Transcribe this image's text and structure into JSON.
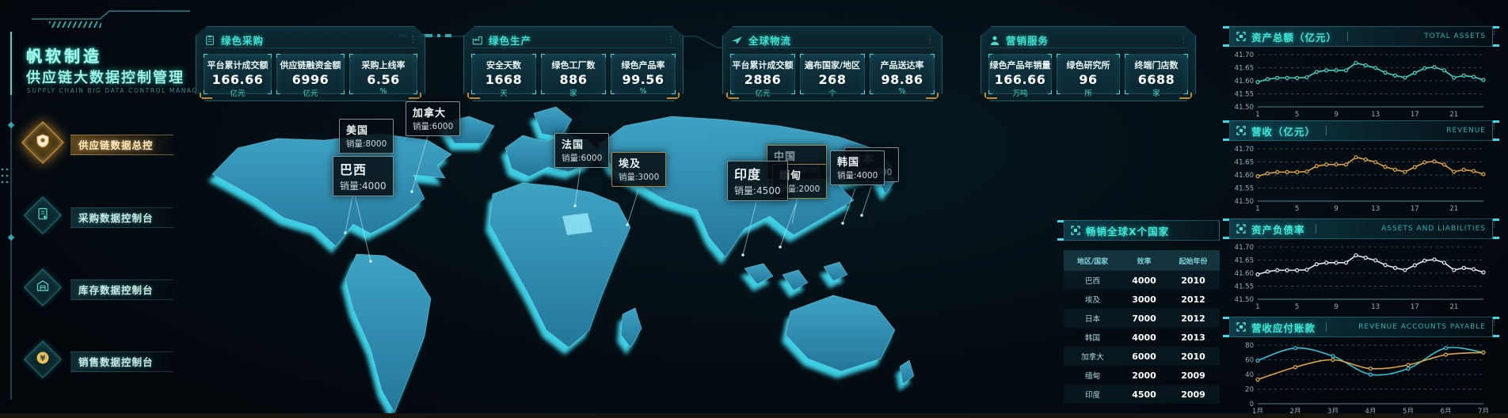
{
  "sidebar": {
    "title_line1": "帆软制造",
    "title_line2": "供应链大数据控制管理",
    "subtitle_en": "SUPPLY CHAIN BIG DATA CONTROL MANAGEMENT",
    "items": [
      {
        "label": "供应链数据总控",
        "icon": "shield-icon",
        "active": true
      },
      {
        "label": "采购数据控制台",
        "icon": "document-icon",
        "active": false
      },
      {
        "label": "库存数据控制台",
        "icon": "warehouse-icon",
        "active": false
      },
      {
        "label": "销售数据控制台",
        "icon": "yuan-icon",
        "active": false
      }
    ]
  },
  "stat_panels": [
    {
      "title": "绿色采购",
      "icon": "clipboard-icon",
      "menu": "⋮",
      "stats": [
        {
          "label": "平台累计成交额",
          "value": "166.66",
          "unit": "亿元"
        },
        {
          "label": "供应链融资金额",
          "value": "6996",
          "unit": "亿元"
        },
        {
          "label": "采购上线率",
          "value": "6.56",
          "unit": "%"
        }
      ]
    },
    {
      "title": "绿色生产",
      "icon": "factory-icon",
      "menu": "⋮",
      "stats": [
        {
          "label": "安全天数",
          "value": "1668",
          "unit": "天"
        },
        {
          "label": "绿色工厂数",
          "value": "886",
          "unit": "家"
        },
        {
          "label": "绿色产品率",
          "value": "99.56",
          "unit": "%"
        }
      ]
    },
    {
      "title": "全球物流",
      "icon": "plane-icon",
      "menu": "⋮",
      "stats": [
        {
          "label": "平台累计成交额",
          "value": "2886",
          "unit": "亿元"
        },
        {
          "label": "遍布国家/地区",
          "value": "268",
          "unit": "个"
        },
        {
          "label": "产品送达率",
          "value": "98.86",
          "unit": "%"
        }
      ]
    },
    {
      "title": "营销服务",
      "icon": "person-icon",
      "menu": "⋮",
      "stats": [
        {
          "label": "绿色产品年销量",
          "value": "166.66",
          "unit": "万吨"
        },
        {
          "label": "绿色研究所",
          "value": "96",
          "unit": "所"
        },
        {
          "label": "终端门店数",
          "value": "6688",
          "unit": "家"
        }
      ]
    }
  ],
  "map_labels": [
    {
      "country": "美国",
      "sales": "销量:8000"
    },
    {
      "country": "加拿大",
      "sales": "销量:6000"
    },
    {
      "country": "法国",
      "sales": "销量:6000"
    },
    {
      "country": "埃及",
      "sales": "销量:3000"
    },
    {
      "country": "巴西",
      "sales": "销量:4000"
    },
    {
      "country": "中国",
      "sales": "销量:10000"
    },
    {
      "country": "缅甸",
      "sales": "销量:2000"
    },
    {
      "country": "印度",
      "sales": "销量:4500"
    },
    {
      "country": "韩国",
      "sales": "销量:4000"
    },
    {
      "country": "日本",
      "sales": "销量:7000"
    }
  ],
  "table_panel": {
    "title": "畅销全球X个国家",
    "columns": [
      "地区/国家",
      "效率",
      "起始年份"
    ],
    "rows": [
      [
        "巴西",
        "4000",
        "2010"
      ],
      [
        "埃及",
        "3000",
        "2012"
      ],
      [
        "日本",
        "7000",
        "2012"
      ],
      [
        "韩国",
        "4000",
        "2013"
      ],
      [
        "加拿大",
        "6000",
        "2010"
      ],
      [
        "缅甸",
        "2000",
        "2009"
      ],
      [
        "印度",
        "4500",
        "2009"
      ]
    ]
  },
  "chart_data": [
    {
      "type": "line",
      "title": "资产总额（亿元）",
      "title_en": "TOTAL ASSETS",
      "ylim": [
        41.5,
        41.7
      ],
      "yticks": [
        41.5,
        41.55,
        41.6,
        41.65,
        41.7
      ],
      "ytick_labels": [
        "41.50",
        "41.55",
        "41.60",
        "41.65",
        "41.70"
      ],
      "x_ticks": [
        {
          "i": 0,
          "label": "1"
        },
        {
          "i": 4,
          "label": "5"
        },
        {
          "i": 8,
          "label": "9"
        },
        {
          "i": 12,
          "label": "13"
        },
        {
          "i": 16,
          "label": "17"
        },
        {
          "i": 20,
          "label": "21"
        }
      ],
      "grid": true,
      "legend": "none",
      "series": [
        {
          "name": "资产总额",
          "color": "#3fd6c4",
          "values": [
            41.595,
            41.606,
            41.611,
            41.611,
            41.611,
            41.613,
            41.634,
            41.64,
            41.64,
            41.64,
            41.668,
            41.659,
            41.649,
            41.631,
            41.62,
            41.612,
            41.63,
            41.648,
            41.652,
            41.64,
            41.612,
            41.62,
            41.615,
            41.603
          ]
        }
      ]
    },
    {
      "type": "line",
      "title": "营收（亿元）",
      "title_en": "REVENUE",
      "ylim": [
        41.5,
        41.7
      ],
      "yticks": [
        41.5,
        41.55,
        41.6,
        41.65,
        41.7
      ],
      "ytick_labels": [
        "41.50",
        "41.55",
        "41.60",
        "41.65",
        "41.70"
      ],
      "x_ticks": [
        {
          "i": 0,
          "label": "1"
        },
        {
          "i": 4,
          "label": "5"
        },
        {
          "i": 8,
          "label": "9"
        },
        {
          "i": 12,
          "label": "13"
        },
        {
          "i": 16,
          "label": "17"
        },
        {
          "i": 20,
          "label": "21"
        }
      ],
      "grid": true,
      "legend": "none",
      "series": [
        {
          "name": "营收",
          "color": "#e2a53c",
          "values": [
            41.595,
            41.606,
            41.611,
            41.611,
            41.611,
            41.613,
            41.634,
            41.64,
            41.64,
            41.64,
            41.668,
            41.659,
            41.649,
            41.631,
            41.62,
            41.612,
            41.63,
            41.648,
            41.652,
            41.64,
            41.612,
            41.62,
            41.615,
            41.603
          ]
        }
      ]
    },
    {
      "type": "line",
      "title": "资产负债率",
      "title_en": "ASSETS AND LIABILITIES",
      "ylim": [
        41.5,
        41.7
      ],
      "yticks": [
        41.5,
        41.55,
        41.6,
        41.65,
        41.7
      ],
      "ytick_labels": [
        "41.50",
        "41.55",
        "41.60",
        "41.65",
        "41.70"
      ],
      "x_ticks": [
        {
          "i": 0,
          "label": "1"
        },
        {
          "i": 4,
          "label": "5"
        },
        {
          "i": 8,
          "label": "9"
        },
        {
          "i": 12,
          "label": "13"
        },
        {
          "i": 16,
          "label": "17"
        },
        {
          "i": 20,
          "label": "21"
        }
      ],
      "grid": true,
      "legend": "none",
      "series": [
        {
          "name": "资产负债率",
          "color": "#e3ecee",
          "values": [
            41.595,
            41.606,
            41.611,
            41.611,
            41.611,
            41.613,
            41.634,
            41.64,
            41.64,
            41.64,
            41.668,
            41.659,
            41.649,
            41.631,
            41.62,
            41.612,
            41.63,
            41.648,
            41.652,
            41.64,
            41.612,
            41.62,
            41.615,
            41.603
          ]
        }
      ]
    },
    {
      "type": "line",
      "title": "营收应付账款",
      "title_en": "REVENUE ACCOUNTS PAYABLE",
      "categories": [
        "1月",
        "2月",
        "3月",
        "4月",
        "5月",
        "6月",
        "7月"
      ],
      "ylim": [
        0,
        80
      ],
      "yticks": [
        0,
        20,
        40,
        60,
        80
      ],
      "ytick_labels": [
        "0",
        "20",
        "40",
        "60",
        "80"
      ],
      "grid": true,
      "legend": "none",
      "smooth": true,
      "series": [
        {
          "name": "营收",
          "color": "#2ec6d8",
          "values": [
            59,
            76,
            65,
            40,
            48,
            76,
            70
          ]
        },
        {
          "name": "应付账款",
          "color": "#e2a53c",
          "values": [
            33,
            50,
            60,
            48,
            53,
            67,
            70
          ]
        }
      ]
    }
  ]
}
